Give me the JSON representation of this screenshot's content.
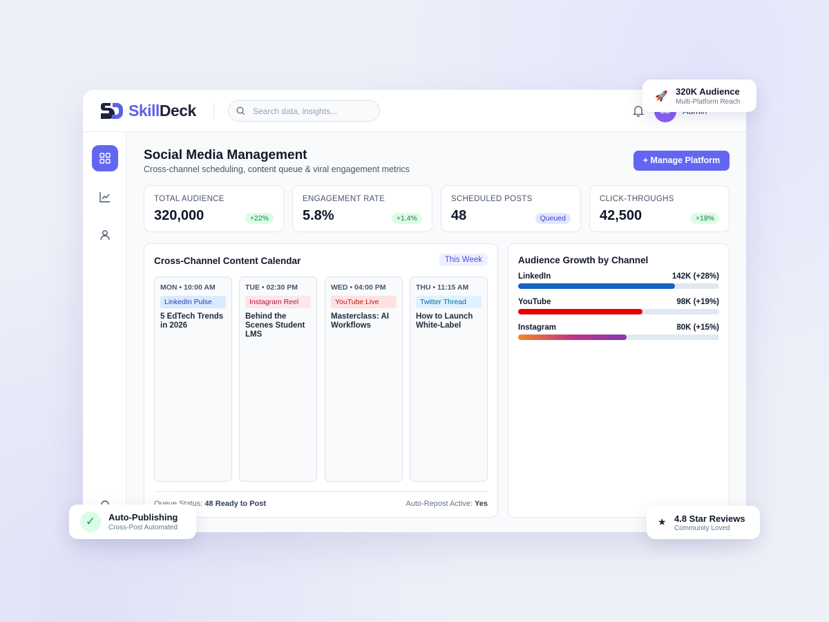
{
  "brand": {
    "name_a": "Skill",
    "name_b": "Deck"
  },
  "search_placeholder": "Search data, insights...",
  "user": {
    "initials": "SD",
    "name": "Admin"
  },
  "page": {
    "title": "Social Media Management",
    "subtitle": "Cross-channel scheduling, content queue & viral engagement metrics",
    "action": "+ Manage Platform"
  },
  "stats": [
    {
      "label": "TOTAL AUDIENCE",
      "value": "320,000",
      "badge": "+22%"
    },
    {
      "label": "ENGAGEMENT RATE",
      "value": "5.8%",
      "badge": "+1.4%"
    },
    {
      "label": "SCHEDULED POSTS",
      "value": "48",
      "badge": "Queued"
    },
    {
      "label": "CLICK-THROUGHS",
      "value": "42,500",
      "badge": "+18%"
    }
  ],
  "calendar": {
    "title": "Cross-Channel Content Calendar",
    "tag": "This Week",
    "posts": [
      {
        "time": "MON • 10:00 AM",
        "channel": "LinkedIn Pulse",
        "text": "5 EdTech Trends in 2026"
      },
      {
        "time": "TUE • 02:30 PM",
        "channel": "Instagram Reel",
        "text": "Behind the Scenes Student LMS"
      },
      {
        "time": "WED • 04:00 PM",
        "channel": "YouTube Live",
        "text": "Masterclass: AI Workflows"
      },
      {
        "time": "THU • 11:15 AM",
        "channel": "Twitter Thread",
        "text": "How to Launch White-Label"
      }
    ],
    "footer": {
      "queue_label": "Queue Status:",
      "queue_value": "48 Ready to Post",
      "repost_label": "Auto-Repost Active:",
      "repost_value": "Yes"
    }
  },
  "growth": {
    "title": "Audience Growth by Channel",
    "channels": [
      {
        "name": "LinkedIn",
        "label": "142K (+28%)",
        "fill": 78
      },
      {
        "name": "YouTube",
        "label": "98K (+19%)",
        "fill": 62
      },
      {
        "name": "Instagram",
        "label": "80K (+15%)",
        "fill": 54
      }
    ]
  },
  "badges": [
    {
      "title": "320K Audience",
      "subtitle": "Multi-Platform Reach"
    },
    {
      "title": "Auto-Publishing",
      "subtitle": "Cross-Post Automated"
    },
    {
      "title": "4.8 Star Reviews",
      "subtitle": "Community Loved"
    }
  ]
}
